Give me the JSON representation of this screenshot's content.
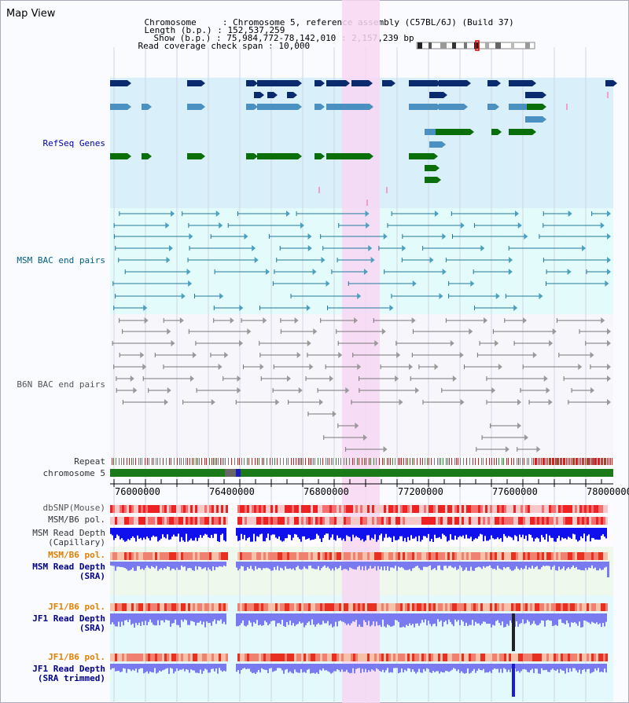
{
  "view_title": "Map View",
  "header": {
    "chromosome_label": "Chromosome",
    "chromosome_value": "Chromosome 5, reference assembly (C57BL/6J) (Build 37)",
    "length_label": "Length (b.p.)",
    "length_value": "152,537,259",
    "show_label": "Show (b.p.)",
    "show_value": "75,984,772-78,142,010 : 2,157,239 bp",
    "coverage_label": "Read coverage check span",
    "coverage_value": "10,000"
  },
  "tracks": {
    "refseq": "RefSeq Genes",
    "msm_bac": "MSM BAC end pairs",
    "b6n_bac": "B6N BAC end pairs",
    "repeat": "Repeat",
    "chromosome": "chromosome 5",
    "dbsnp": "dbSNP(Mouse)",
    "msm_b6_pol_1": "MSM/B6 pol.",
    "msm_read_depth_cap_1": "MSM Read Depth",
    "msm_read_depth_cap_2": "(Capillary)",
    "msm_b6_pol_2": "MSM/B6 pol.",
    "msm_read_depth_sra_1": "MSM Read Depth",
    "msm_read_depth_sra_2": "(SRA)",
    "jf1_b6_pol_1": "JF1/B6 pol.",
    "jf1_read_depth_sra_1": "JF1 Read Depth",
    "jf1_read_depth_sra_2": "(SRA)",
    "jf1_b6_pol_2": "JF1/B6 pol.",
    "jf1_read_depth_trim_1": "JF1 Read Depth",
    "jf1_read_depth_trim_2": "(SRA trimmed)"
  },
  "axis": {
    "ticks": [
      "76000000",
      "76400000",
      "76800000",
      "77200000",
      "77600000",
      "78000000"
    ]
  },
  "colors": {
    "refseq_bg": "#d9f0fb",
    "msm_bg": "#e4fbfc",
    "b6n_bg": "#f7f7fb",
    "highlight": "#f7d7f3",
    "gene_navy": "#0a2a6e",
    "gene_steel": "#4a90c0",
    "gene_green": "#0a6e0a",
    "msm_line": "#1f7a9a",
    "b6n_line": "#777777",
    "chrom_green": "#1a7a1a",
    "depth_blue": "#1010ee",
    "depth_periwinkle": "#7a7af0",
    "pol_red": "#ee2222"
  }
}
